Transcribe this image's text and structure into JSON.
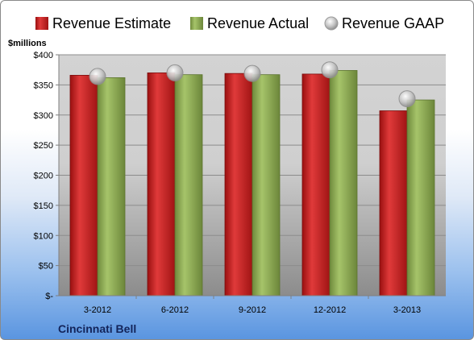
{
  "chart_data": {
    "type": "bar",
    "ylabel": "$millions",
    "company": "Cincinnati Bell",
    "categories": [
      "3-2012",
      "6-2012",
      "9-2012",
      "12-2012",
      "3-2013"
    ],
    "series": [
      {
        "name": "Revenue Estimate",
        "kind": "bar",
        "color": "#cc2222",
        "values": [
          366,
          370,
          369,
          368,
          307
        ]
      },
      {
        "name": "Revenue Actual",
        "kind": "bar",
        "color": "#8daa56",
        "values": [
          362,
          367,
          367,
          374,
          325
        ]
      },
      {
        "name": "Revenue GAAP",
        "kind": "marker",
        "color": "#bdbdbd",
        "values": [
          364,
          370,
          369,
          375,
          327
        ]
      }
    ],
    "ylim": [
      0,
      400
    ],
    "yticks": [
      0,
      50,
      100,
      150,
      200,
      250,
      300,
      350,
      400
    ],
    "ytick_labels": [
      "$-",
      "$50",
      "$100",
      "$150",
      "$200",
      "$250",
      "$300",
      "$350",
      "$400"
    ],
    "grid": true,
    "legend_position": "top"
  }
}
